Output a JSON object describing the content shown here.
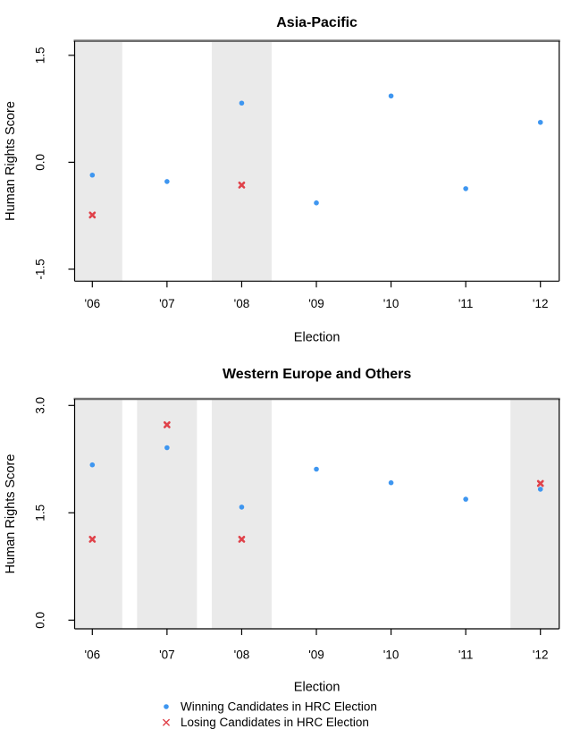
{
  "figure": {
    "colors": {
      "winning": "#3e96f0",
      "losing": "#e0424a",
      "shaded_band": "#eaeaea",
      "frame_top": "#6e6e6e",
      "axis": "#000000"
    },
    "legend": {
      "position": "bottom",
      "items": [
        {
          "label": "Winning Candidates in HRC Election",
          "marker": "dot",
          "color": "#3e96f0"
        },
        {
          "label": "Losing Candidates in HRC Election",
          "marker": "x",
          "color": "#e0424a"
        }
      ]
    }
  },
  "chart_data": [
    {
      "type": "scatter",
      "title": "Asia-Pacific",
      "xlabel": "Election",
      "ylabel": "Human Rights Score",
      "categories": [
        "'06",
        "'07",
        "'08",
        "'09",
        "'10",
        "'11",
        "'12"
      ],
      "yticks": [
        1.5,
        0.0,
        -1.5
      ],
      "ytick_labels": [
        "1.5",
        "0.0",
        "-1.5"
      ],
      "ylim": [
        -1.67,
        1.7
      ],
      "grid": false,
      "shaded_categories": [
        "'06",
        "'08"
      ],
      "series": [
        {
          "name": "Winning Candidates in HRC Election",
          "marker": "dot",
          "values": [
            -0.18,
            -0.27,
            0.83,
            -0.57,
            0.93,
            -0.37,
            0.56
          ]
        },
        {
          "name": "Losing Candidates in HRC Election",
          "marker": "x",
          "values": [
            -0.74,
            null,
            -0.32,
            null,
            null,
            null,
            null
          ]
        }
      ]
    },
    {
      "type": "scatter",
      "title": "Western Europe and Others",
      "xlabel": "Election",
      "ylabel": "Human Rights Score",
      "categories": [
        "'06",
        "'07",
        "'08",
        "'09",
        "'10",
        "'11",
        "'12"
      ],
      "yticks": [
        3.0,
        1.5,
        0.0
      ],
      "ytick_labels": [
        "3.0",
        "1.5",
        "0.0"
      ],
      "ylim": [
        -0.14,
        3.09
      ],
      "grid": false,
      "shaded_categories": [
        "'06",
        "'07",
        "'08",
        "'12"
      ],
      "series": [
        {
          "name": "Winning Candidates in HRC Election",
          "marker": "dot",
          "values": [
            2.17,
            2.41,
            1.58,
            2.11,
            1.92,
            1.69,
            1.83
          ]
        },
        {
          "name": "Losing Candidates in HRC Election",
          "marker": "x",
          "values": [
            1.13,
            2.73,
            1.13,
            null,
            null,
            null,
            1.91
          ]
        }
      ]
    }
  ]
}
